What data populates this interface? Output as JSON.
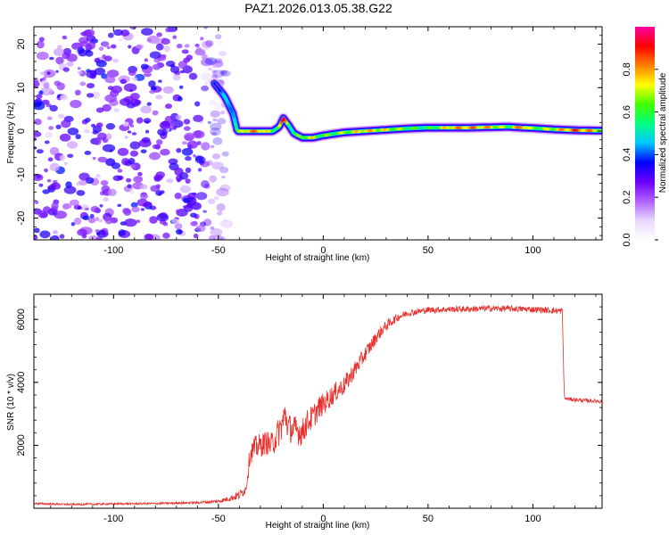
{
  "title": "PAZ1.2026.013.05.38.G22",
  "chart_data": [
    {
      "type": "heatmap",
      "name": "spectrogram",
      "xlabel": "Height of straight line (km)",
      "ylabel": "Frequency (Hz)",
      "xlim": [
        -138,
        133
      ],
      "ylim": [
        -25,
        24
      ],
      "xticks": [
        -100,
        -50,
        0,
        50,
        100
      ],
      "xtick_labels": [
        "-100",
        "-50",
        "0",
        "50",
        "100"
      ],
      "yticks": [
        -20,
        -10,
        0,
        10,
        20
      ],
      "ytick_labels": [
        "-20",
        "-10",
        "0",
        "10",
        "20"
      ],
      "noise_region_x": [
        -138,
        -52
      ],
      "ridge": {
        "x": [
          -52,
          -47,
          -43,
          -41,
          -38,
          -30,
          -24,
          -21,
          -19,
          -16,
          -14,
          -10,
          -5,
          0,
          10,
          20,
          30,
          40,
          50,
          60,
          70,
          80,
          88,
          95,
          100,
          110,
          120,
          133
        ],
        "y": [
          11,
          8,
          4,
          0,
          0,
          0,
          0,
          1,
          3,
          1,
          -0.5,
          -1.5,
          -1.5,
          -1,
          -0.3,
          0,
          0.3,
          0.6,
          0.8,
          0.8,
          0.8,
          0.9,
          1.0,
          0.8,
          0.7,
          0.4,
          0.2,
          0.1
        ],
        "intensity": [
          0.35,
          0.4,
          0.5,
          0.55,
          0.75,
          0.8,
          0.6,
          0.7,
          0.9,
          0.6,
          0.55,
          0.65,
          0.7,
          0.6,
          0.65,
          0.75,
          0.7,
          0.6,
          0.55,
          0.75,
          0.8,
          0.75,
          0.6,
          0.85,
          0.6,
          0.7,
          0.85,
          0.7
        ]
      },
      "colorbar": {
        "label": "Normalized spectral amplitude",
        "ticks": [
          0.0,
          0.2,
          0.4,
          0.6,
          0.8
        ],
        "tick_labels": [
          "0.0",
          "0.2",
          "0.4",
          "0.6",
          "0.8"
        ],
        "range": [
          0,
          1
        ],
        "colors": [
          "#ffffff",
          "#e8d8ff",
          "#b060ff",
          "#6a00ff",
          "#0000ff",
          "#00c8ff",
          "#00ff80",
          "#40ff00",
          "#ffff00",
          "#ff8000",
          "#ff0000",
          "#ff00a0"
        ]
      }
    },
    {
      "type": "line",
      "name": "snr",
      "xlabel": "Height of straight line (km)",
      "ylabel": "SNR (10 * v/v)",
      "xlim": [
        -138,
        133
      ],
      "ylim": [
        0,
        6800
      ],
      "xticks": [
        -100,
        -50,
        0,
        50,
        100
      ],
      "xtick_labels": [
        "-100",
        "-50",
        "0",
        "50",
        "100"
      ],
      "yticks": [
        2000,
        4000,
        6000
      ],
      "ytick_labels": [
        "2000",
        "4000",
        "6000"
      ],
      "color": "#e8302c",
      "x": [
        -138,
        -120,
        -100,
        -80,
        -60,
        -50,
        -45,
        -40,
        -37,
        -36,
        -35,
        -33,
        -30,
        -27,
        -25,
        -23,
        -20,
        -18,
        -17,
        -15,
        -13,
        -10,
        -8,
        -5,
        -2,
        0,
        3,
        6,
        10,
        14,
        18,
        22,
        26,
        30,
        35,
        40,
        50,
        60,
        70,
        80,
        90,
        100,
        110,
        114,
        115,
        116,
        120,
        125,
        133
      ],
      "y": [
        150,
        120,
        140,
        150,
        180,
        220,
        300,
        420,
        600,
        1100,
        1700,
        1900,
        2000,
        2100,
        2000,
        2200,
        2600,
        3000,
        2600,
        2500,
        2500,
        2400,
        2700,
        2900,
        3200,
        3300,
        3500,
        3700,
        3900,
        4300,
        4700,
        5100,
        5500,
        5800,
        6050,
        6200,
        6300,
        6320,
        6330,
        6350,
        6340,
        6320,
        6280,
        6270,
        3500,
        3480,
        3450,
        3420,
        3400
      ],
      "noise": [
        30,
        30,
        30,
        30,
        40,
        60,
        80,
        150,
        150,
        300,
        300,
        380,
        380,
        380,
        380,
        450,
        500,
        500,
        450,
        450,
        450,
        450,
        420,
        400,
        380,
        350,
        330,
        320,
        300,
        280,
        260,
        230,
        200,
        170,
        130,
        110,
        100,
        100,
        100,
        100,
        100,
        100,
        100,
        100,
        70,
        60,
        60,
        60,
        60
      ]
    }
  ]
}
